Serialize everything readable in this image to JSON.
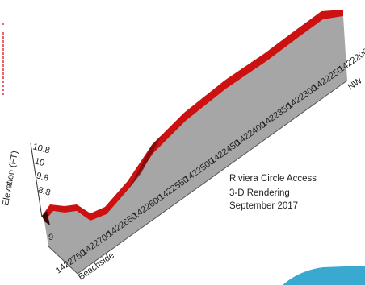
{
  "axis": {
    "title": "Elevation (FT)",
    "ticks": [
      "10.8",
      "10",
      "9.8",
      "8.8"
    ],
    "base_label": "9"
  },
  "x_axis": {
    "ticks": [
      "1422750",
      "1422700",
      "1422650",
      "1422600",
      "1422550",
      "1422500",
      "1422450",
      "1422400",
      "1422350",
      "1422300",
      "1422250",
      "1422200"
    ],
    "end_label": "NW",
    "start_label": "Beachside"
  },
  "caption": {
    "line1": "Riviera Circle Access",
    "line2": "3-D Rendering",
    "line3": "September 2017"
  }
}
